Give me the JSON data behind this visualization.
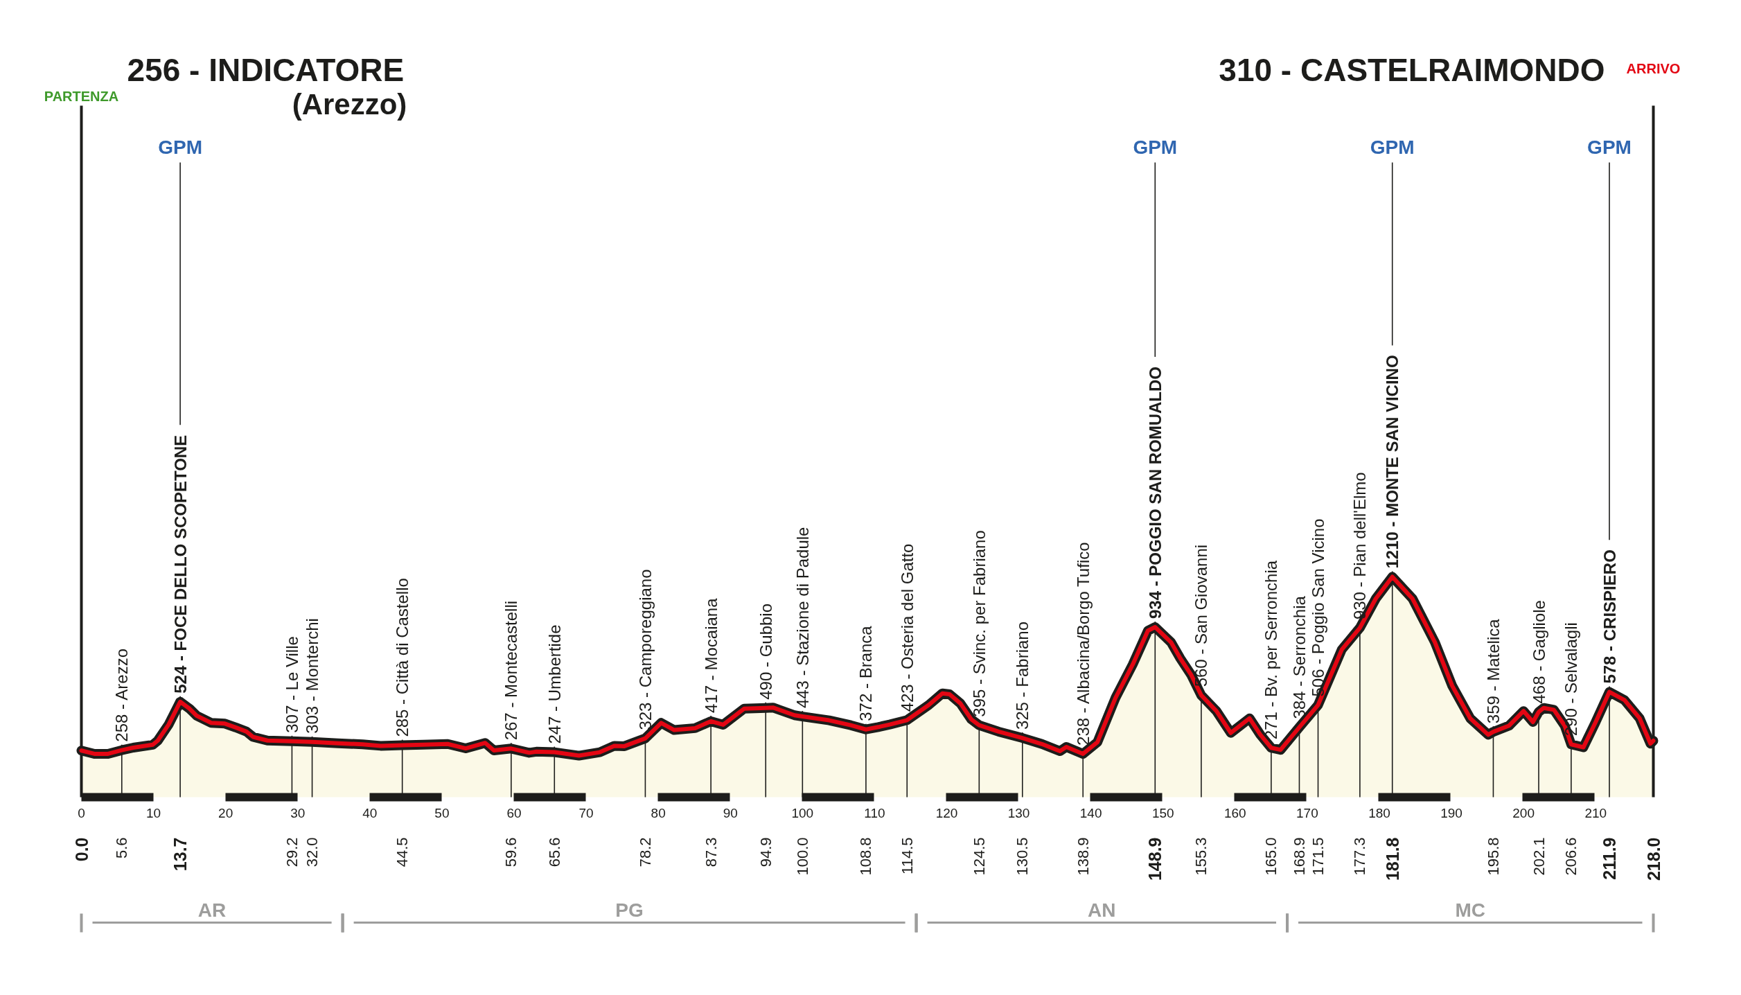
{
  "chart_data": {
    "type": "area",
    "title": "256 - INDICATORE",
    "subtitle": "(Arezzo)",
    "color": "#e30613",
    "x": [
      0,
      1.8,
      3.7,
      5.6,
      7.2,
      9.9,
      10.6,
      12.1,
      13.7,
      15.0,
      16.0,
      18.0,
      19.9,
      21.4,
      22.9,
      23.8,
      25.8,
      29.2,
      32.0,
      35.6,
      39.0,
      41.5,
      44.5,
      47.4,
      50.8,
      53.3,
      56.0,
      57.2,
      59.6,
      62.1,
      63.1,
      65.6,
      69.0,
      71.9,
      73.9,
      75.3,
      78.2,
      80.4,
      82.2,
      85.1,
      87.3,
      89.0,
      91.9,
      94.9,
      95.9,
      98.9,
      100.0,
      103.7,
      106.7,
      108.8,
      110.5,
      112.1,
      114.5,
      117.5,
      119.4,
      120.4,
      121.9,
      123.4,
      124.5,
      127.2,
      130.5,
      133.2,
      135.7,
      136.6,
      138.9,
      140.9,
      143.4,
      145.8,
      147.9,
      148.9,
      151.1,
      152.4,
      153.9,
      155.3,
      157.4,
      159.4,
      162.0,
      163.5,
      165.0,
      166.3,
      168.9,
      171.5,
      174.8,
      177.3,
      179.5,
      181.8,
      184.6,
      187.7,
      190.1,
      192.6,
      195.1,
      195.8,
      198.0,
      200.0,
      201.3,
      202.1,
      202.8,
      204.2,
      205.7,
      206.6,
      208.3,
      210.0,
      211.9,
      214.0,
      216.1,
      217.6,
      218.0
    ],
    "values": [
      256,
      238,
      238,
      258,
      272,
      288,
      311,
      399,
      524,
      486,
      447,
      408,
      404,
      383,
      360,
      331,
      311,
      307,
      303,
      296,
      290,
      282,
      285,
      288,
      292,
      268,
      298,
      257,
      267,
      244,
      250,
      247,
      228,
      247,
      282,
      280,
      323,
      408,
      369,
      379,
      417,
      398,
      486,
      490,
      492,
      450,
      443,
      422,
      395,
      372,
      385,
      399,
      423,
      506,
      570,
      565,
      515,
      428,
      395,
      360,
      325,
      292,
      253,
      276,
      238,
      302,
      545,
      729,
      914,
      934,
      851,
      762,
      672,
      560,
      473,
      353,
      433,
      343,
      271,
      260,
      384,
      506,
      811,
      930,
      1090,
      1210,
      1090,
      851,
      612,
      433,
      343,
      359,
      393,
      473,
      413,
      468,
      490,
      480,
      393,
      290,
      274,
      413,
      578,
      533,
      433,
      294,
      310
    ],
    "value_labels": [
      null,
      null,
      null,
      "258 - Arezzo",
      null,
      null,
      null,
      null,
      "524 - FOCE DELLO SCOPETONE",
      null,
      null,
      null,
      null,
      null,
      null,
      null,
      null,
      "307 - Le Ville",
      "303 - Monterchi",
      null,
      null,
      null,
      "285 - Città di Castello",
      null,
      null,
      null,
      null,
      null,
      "267 - Montecastelli",
      null,
      null,
      "247 - Umbertide",
      null,
      null,
      null,
      null,
      "323 - Camporeggiano",
      null,
      null,
      null,
      "417 - Mocaiana",
      null,
      null,
      "490 - Gubbio",
      null,
      null,
      "443 - Stazione di Padule",
      null,
      null,
      "372 - Branca",
      null,
      null,
      "423 - Osteria del Gatto",
      null,
      null,
      null,
      null,
      null,
      "395 - Svinc. per Fabriano",
      null,
      "325 - Fabriano",
      null,
      null,
      null,
      "238 - Albacina/Borgo Tufico",
      null,
      null,
      null,
      null,
      "934 - POGGIO SAN ROMUALDO",
      null,
      null,
      null,
      "560 - San Giovanni",
      null,
      null,
      null,
      null,
      "271 - Bv. per Serronchia",
      null,
      "384 - Serronchia",
      "506 - Poggio San Vicino",
      null,
      "930 - Pian dell'Elmo",
      null,
      "1210 - MONTE SAN VICINO",
      null,
      null,
      null,
      null,
      null,
      "359 - Matelica",
      null,
      null,
      null,
      "468 - Gagliole",
      null,
      null,
      null,
      "290 - Selvalagli",
      null,
      null,
      "578 - CRISPIERO",
      null,
      null,
      null,
      null
    ],
    "xlim": [
      0,
      218
    ],
    "xticks": [
      0,
      10,
      20,
      30,
      40,
      50,
      60,
      70,
      80,
      90,
      100,
      110,
      120,
      130,
      140,
      150,
      160,
      170,
      180,
      190,
      200,
      210
    ],
    "tick_labels": "x",
    "annotations": [
      "310 - CASTELRAIMONDO",
      "PARTENZA",
      "ARRIVO",
      "AR",
      "PG",
      "AN",
      "MC"
    ],
    "ref_lines": [
      {
        "axis": "x",
        "value": 0,
        "label": "0.0"
      },
      {
        "axis": "x",
        "value": 5.6,
        "label": "5.6"
      },
      {
        "axis": "x",
        "value": 13.7,
        "label": "13.7"
      },
      {
        "axis": "x",
        "value": 29.2,
        "label": "29.2"
      },
      {
        "axis": "x",
        "value": 32.0,
        "label": "32.0"
      },
      {
        "axis": "x",
        "value": 44.5,
        "label": "44.5"
      },
      {
        "axis": "x",
        "value": 59.6,
        "label": "59.6"
      },
      {
        "axis": "x",
        "value": 65.6,
        "label": "65.6"
      },
      {
        "axis": "x",
        "value": 78.2,
        "label": "78.2"
      },
      {
        "axis": "x",
        "value": 87.3,
        "label": "87.3"
      },
      {
        "axis": "x",
        "value": 94.9,
        "label": "94.9"
      },
      {
        "axis": "x",
        "value": 100.0,
        "label": "100.0"
      },
      {
        "axis": "x",
        "value": 108.8,
        "label": "108.8"
      },
      {
        "axis": "x",
        "value": 114.5,
        "label": "114.5"
      },
      {
        "axis": "x",
        "value": 124.5,
        "label": "124.5"
      },
      {
        "axis": "x",
        "value": 130.5,
        "label": "130.5"
      },
      {
        "axis": "x",
        "value": 138.9,
        "label": "138.9"
      },
      {
        "axis": "x",
        "value": 148.9,
        "label": "148.9"
      },
      {
        "axis": "x",
        "value": 155.3,
        "label": "155.3"
      },
      {
        "axis": "x",
        "value": 165.0,
        "label": "165.0"
      },
      {
        "axis": "x",
        "value": 168.9,
        "label": "168.9"
      },
      {
        "axis": "x",
        "value": 171.5,
        "label": "171.5"
      },
      {
        "axis": "x",
        "value": 177.3,
        "label": "177.3"
      },
      {
        "axis": "x",
        "value": 181.8,
        "label": "181.8"
      },
      {
        "axis": "x",
        "value": 195.8,
        "label": "195.8"
      },
      {
        "axis": "x",
        "value": 202.1,
        "label": "202.1"
      },
      {
        "axis": "x",
        "value": 206.6,
        "label": "206.6"
      },
      {
        "axis": "x",
        "value": 211.9,
        "label": "211.9"
      },
      {
        "axis": "x",
        "value": 218,
        "label": "218.0"
      },
      {
        "axis": "x",
        "value": 13.7,
        "label": "GPM"
      },
      {
        "axis": "x",
        "value": 148.9,
        "label": "GPM"
      },
      {
        "axis": "x",
        "value": 181.8,
        "label": "GPM"
      },
      {
        "axis": "x",
        "value": 211.9,
        "label": "GPM"
      }
    ]
  }
}
